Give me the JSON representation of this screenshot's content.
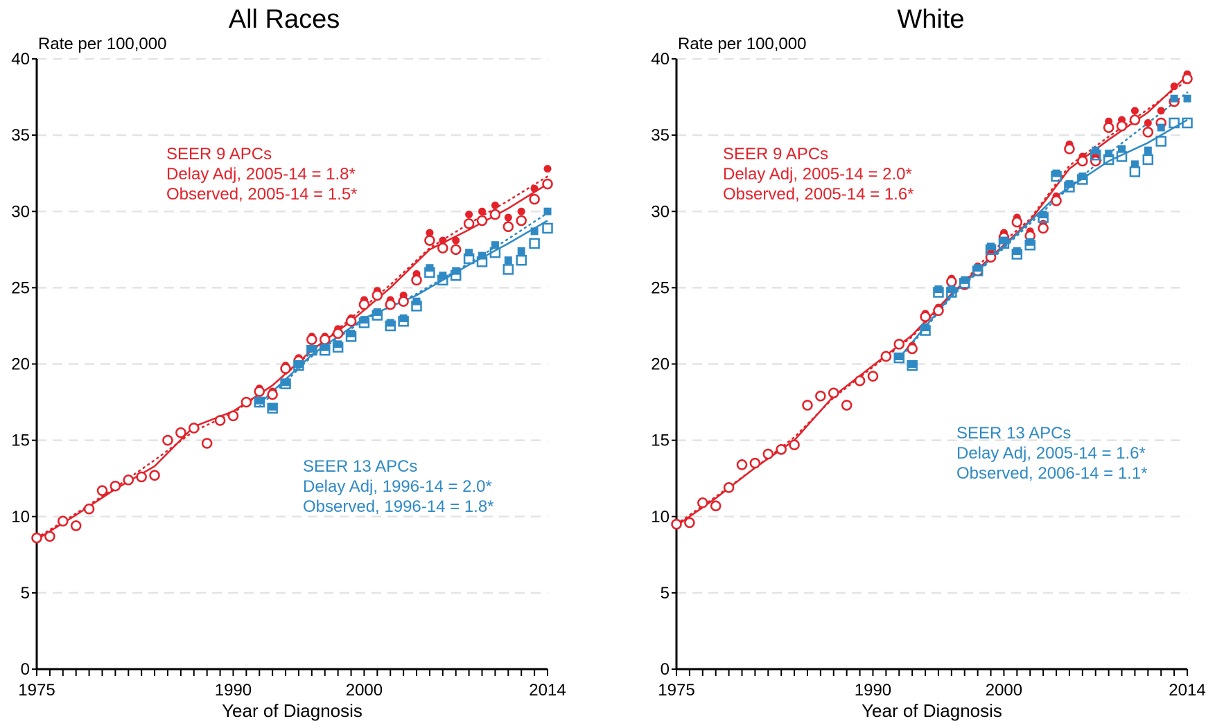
{
  "chart_data": [
    {
      "type": "scatter",
      "title": "All Races",
      "ylabel": "Rate per 100,000",
      "xlabel": "Year of Diagnosis",
      "xlim": [
        1975,
        2014
      ],
      "ylim": [
        0,
        40
      ],
      "x_ticks": [
        1975,
        1990,
        2000,
        2014
      ],
      "y_ticks": [
        0,
        5,
        10,
        15,
        20,
        25,
        30,
        35,
        40
      ],
      "grid": "horizontal dashed",
      "colors": {
        "seer9": "#e3222a",
        "seer13": "#2f8ac4"
      },
      "series": [
        {
          "key": "seer9_delay_adj",
          "x": [
            1975,
            1976,
            1977,
            1978,
            1979,
            1980,
            1981,
            1982,
            1983,
            1984,
            1985,
            1986,
            1987,
            1988,
            1989,
            1990,
            1991,
            1992,
            1993,
            1994,
            1995,
            1996,
            1997,
            1998,
            1999,
            2000,
            2001,
            2002,
            2003,
            2004,
            2005,
            2006,
            2007,
            2008,
            2009,
            2010,
            2011,
            2012,
            2013,
            2014
          ],
          "y": [
            8.7,
            8.8,
            9.8,
            9.5,
            10.6,
            11.8,
            12.1,
            12.5,
            12.7,
            12.8,
            15.1,
            15.6,
            15.9,
            14.9,
            16.4,
            16.7,
            17.6,
            18.4,
            18.2,
            19.9,
            20.4,
            21.8,
            21.8,
            22.3,
            23.0,
            24.2,
            24.8,
            24.2,
            24.5,
            25.9,
            28.6,
            28.1,
            28.1,
            29.8,
            30.0,
            30.4,
            29.6,
            30.0,
            31.5,
            32.8
          ]
        },
        {
          "key": "seer9_observed",
          "x": [
            1975,
            1976,
            1977,
            1978,
            1979,
            1980,
            1981,
            1982,
            1983,
            1984,
            1985,
            1986,
            1987,
            1988,
            1989,
            1990,
            1991,
            1992,
            1993,
            1994,
            1995,
            1996,
            1997,
            1998,
            1999,
            2000,
            2001,
            2002,
            2003,
            2004,
            2005,
            2006,
            2007,
            2008,
            2009,
            2010,
            2011,
            2012,
            2013,
            2014
          ],
          "y": [
            8.6,
            8.7,
            9.7,
            9.4,
            10.5,
            11.7,
            12.0,
            12.4,
            12.6,
            12.7,
            15.0,
            15.5,
            15.8,
            14.8,
            16.3,
            16.6,
            17.5,
            18.2,
            18.0,
            19.7,
            20.2,
            21.6,
            21.6,
            22.0,
            22.8,
            23.9,
            24.5,
            23.9,
            24.1,
            25.5,
            28.1,
            27.6,
            27.5,
            29.2,
            29.4,
            29.8,
            29.0,
            29.4,
            30.8,
            31.8
          ]
        },
        {
          "key": "seer13_delay_adj",
          "x": [
            1992,
            1993,
            1994,
            1995,
            1996,
            1997,
            1998,
            1999,
            2000,
            2001,
            2002,
            2003,
            2004,
            2005,
            2006,
            2007,
            2008,
            2009,
            2010,
            2011,
            2012,
            2013,
            2014
          ],
          "y": [
            17.6,
            17.2,
            18.8,
            20.0,
            21.0,
            21.1,
            21.3,
            22.0,
            22.9,
            23.4,
            22.7,
            23.0,
            24.1,
            26.3,
            25.8,
            26.1,
            27.3,
            27.1,
            27.8,
            26.8,
            27.4,
            28.7,
            30.0
          ]
        },
        {
          "key": "seer13_observed",
          "x": [
            1992,
            1993,
            1994,
            1995,
            1996,
            1997,
            1998,
            1999,
            2000,
            2001,
            2002,
            2003,
            2004,
            2005,
            2006,
            2007,
            2008,
            2009,
            2010,
            2011,
            2012,
            2013,
            2014
          ],
          "y": [
            17.5,
            17.1,
            18.7,
            19.9,
            20.9,
            20.9,
            21.1,
            21.8,
            22.7,
            23.2,
            22.5,
            22.8,
            23.8,
            26.0,
            25.5,
            25.8,
            26.9,
            26.7,
            27.3,
            26.2,
            26.8,
            27.9,
            28.9
          ]
        }
      ],
      "fit_lines": [
        {
          "key": "seer9_fit_delay",
          "style": "dotted",
          "x": [
            1975,
            1978,
            1981,
            1984,
            1987,
            1990,
            1993,
            1996,
            1999,
            2002,
            2005,
            2008,
            2011,
            2014
          ],
          "y": [
            8.6,
            10.2,
            11.9,
            13.7,
            15.6,
            16.8,
            18.6,
            20.8,
            23.0,
            25.2,
            27.6,
            29.2,
            30.7,
            32.3
          ]
        },
        {
          "key": "seer9_fit_observed",
          "style": "solid",
          "x": [
            1975,
            1978,
            1981,
            1984,
            1987,
            1990,
            1993,
            1996,
            1999,
            2002,
            2005,
            2008,
            2011,
            2014
          ],
          "y": [
            8.5,
            10.1,
            11.8,
            13.3,
            15.9,
            16.9,
            18.6,
            20.9,
            22.8,
            25.0,
            27.5,
            28.8,
            30.2,
            31.8
          ]
        },
        {
          "key": "seer13_fit_delay",
          "style": "dotted",
          "x": [
            1992,
            1996,
            2000,
            2004,
            2008,
            2011,
            2014
          ],
          "y": [
            17.2,
            20.5,
            22.9,
            24.6,
            26.6,
            28.2,
            29.9
          ]
        },
        {
          "key": "seer13_fit_observed",
          "style": "solid",
          "x": [
            1992,
            1996,
            2000,
            2004,
            2008,
            2011,
            2014
          ],
          "y": [
            17.4,
            20.6,
            23.0,
            24.5,
            26.5,
            27.9,
            29.4
          ]
        }
      ],
      "annotations": {
        "seer9": {
          "heading": "SEER 9 APCs",
          "line1": "Delay Adj, 2005-14 = 1.8*",
          "line2": "Observed, 2005-14 = 1.5*"
        },
        "seer13": {
          "heading": "SEER 13 APCs",
          "line1": "Delay Adj, 1996-14 = 2.0*",
          "line2": "Observed, 1996-14 = 1.8*"
        }
      }
    },
    {
      "type": "scatter",
      "title": "White",
      "ylabel": "Rate per 100,000",
      "xlabel": "Year of Diagnosis",
      "xlim": [
        1975,
        2014
      ],
      "ylim": [
        0,
        40
      ],
      "x_ticks": [
        1975,
        1990,
        2000,
        2014
      ],
      "y_ticks": [
        0,
        5,
        10,
        15,
        20,
        25,
        30,
        35,
        40
      ],
      "grid": "horizontal dashed",
      "colors": {
        "seer9": "#e3222a",
        "seer13": "#2f8ac4"
      },
      "series": [
        {
          "key": "seer9_delay_adj",
          "x": [
            1975,
            1976,
            1977,
            1978,
            1979,
            1980,
            1981,
            1982,
            1983,
            1984,
            1985,
            1986,
            1987,
            1988,
            1989,
            1990,
            1991,
            1992,
            1993,
            1994,
            1995,
            1996,
            1997,
            1998,
            1999,
            2000,
            2001,
            2002,
            2003,
            2004,
            2005,
            2006,
            2007,
            2008,
            2009,
            2010,
            2011,
            2012,
            2013,
            2014
          ],
          "y": [
            9.6,
            9.7,
            11.0,
            10.8,
            12.0,
            13.5,
            13.6,
            14.2,
            14.5,
            14.8,
            17.4,
            18.0,
            18.2,
            17.4,
            19.0,
            19.3,
            20.6,
            21.4,
            21.2,
            23.3,
            23.7,
            25.6,
            25.4,
            26.4,
            27.3,
            28.6,
            29.6,
            28.7,
            29.2,
            31.0,
            34.4,
            33.6,
            33.6,
            35.9,
            36.0,
            36.6,
            35.8,
            36.6,
            38.2,
            39.0
          ]
        },
        {
          "key": "seer9_observed",
          "x": [
            1975,
            1976,
            1977,
            1978,
            1979,
            1980,
            1981,
            1982,
            1983,
            1984,
            1985,
            1986,
            1987,
            1988,
            1989,
            1990,
            1991,
            1992,
            1993,
            1994,
            1995,
            1996,
            1997,
            1998,
            1999,
            2000,
            2001,
            2002,
            2003,
            2004,
            2005,
            2006,
            2007,
            2008,
            2009,
            2010,
            2011,
            2012,
            2013,
            2014
          ],
          "y": [
            9.5,
            9.6,
            10.9,
            10.7,
            11.9,
            13.4,
            13.5,
            14.1,
            14.4,
            14.7,
            17.3,
            17.9,
            18.1,
            17.3,
            18.9,
            19.2,
            20.5,
            21.3,
            21.0,
            23.1,
            23.5,
            25.4,
            25.2,
            26.1,
            27.0,
            28.3,
            29.3,
            28.4,
            28.9,
            30.7,
            34.1,
            33.3,
            33.3,
            35.5,
            35.6,
            36.0,
            35.2,
            35.8,
            37.2,
            38.7
          ]
        },
        {
          "key": "seer13_delay_adj",
          "x": [
            1992,
            1993,
            1994,
            1995,
            1996,
            1997,
            1998,
            1999,
            2000,
            2001,
            2002,
            2003,
            2004,
            2005,
            2006,
            2007,
            2008,
            2009,
            2010,
            2011,
            2012,
            2013,
            2014
          ],
          "y": [
            20.5,
            20.0,
            22.4,
            24.9,
            24.9,
            25.5,
            26.3,
            27.7,
            28.1,
            27.4,
            28.0,
            29.8,
            32.5,
            31.8,
            32.3,
            34.0,
            33.8,
            34.1,
            33.1,
            34.0,
            35.5,
            37.4,
            37.4
          ]
        },
        {
          "key": "seer13_observed",
          "x": [
            1992,
            1993,
            1994,
            1995,
            1996,
            1997,
            1998,
            1999,
            2000,
            2001,
            2002,
            2003,
            2004,
            2005,
            2006,
            2007,
            2008,
            2009,
            2010,
            2011,
            2012,
            2013,
            2014
          ],
          "y": [
            20.4,
            19.9,
            22.2,
            24.7,
            24.7,
            25.3,
            26.1,
            27.5,
            27.9,
            27.2,
            27.8,
            29.6,
            32.3,
            31.6,
            32.1,
            33.7,
            33.4,
            33.6,
            32.6,
            33.4,
            34.6,
            35.8,
            35.8
          ]
        }
      ],
      "fit_lines": [
        {
          "key": "seer9_fit_delay",
          "style": "dotted",
          "x": [
            1975,
            1978,
            1981,
            1984,
            1987,
            1990,
            1993,
            1996,
            1999,
            2002,
            2005,
            2008,
            2011,
            2014
          ],
          "y": [
            9.5,
            11.3,
            13.2,
            15.2,
            17.8,
            19.8,
            21.8,
            24.5,
            27.3,
            29.5,
            33.0,
            34.9,
            36.7,
            38.6
          ]
        },
        {
          "key": "seer9_fit_observed",
          "style": "solid",
          "x": [
            1975,
            1978,
            1981,
            1984,
            1987,
            1990,
            1993,
            1996,
            1999,
            2002,
            2005,
            2008,
            2011,
            2014
          ],
          "y": [
            9.4,
            11.2,
            13.2,
            15.0,
            17.9,
            19.9,
            21.9,
            24.6,
            27.0,
            29.4,
            32.8,
            34.7,
            36.5,
            38.9
          ]
        },
        {
          "key": "seer13_fit_delay",
          "style": "dotted",
          "x": [
            1992,
            1996,
            2000,
            2004,
            2008,
            2011,
            2014
          ],
          "y": [
            20.3,
            24.4,
            27.6,
            30.8,
            33.8,
            35.8,
            37.8
          ]
        },
        {
          "key": "seer13_fit_observed",
          "style": "solid",
          "x": [
            1992,
            1996,
            2000,
            2004,
            2008,
            2011,
            2014
          ],
          "y": [
            20.4,
            24.5,
            27.7,
            31.0,
            33.3,
            34.5,
            36.0
          ]
        }
      ],
      "annotations": {
        "seer9": {
          "heading": "SEER 9 APCs",
          "line1": "Delay Adj, 2005-14 = 2.0*",
          "line2": "Observed, 2005-14 = 1.6*"
        },
        "seer13": {
          "heading": "SEER 13 APCs",
          "line1": "Delay Adj, 2005-14 = 1.6*",
          "line2": "Observed, 2006-14 = 1.1*"
        }
      }
    }
  ]
}
